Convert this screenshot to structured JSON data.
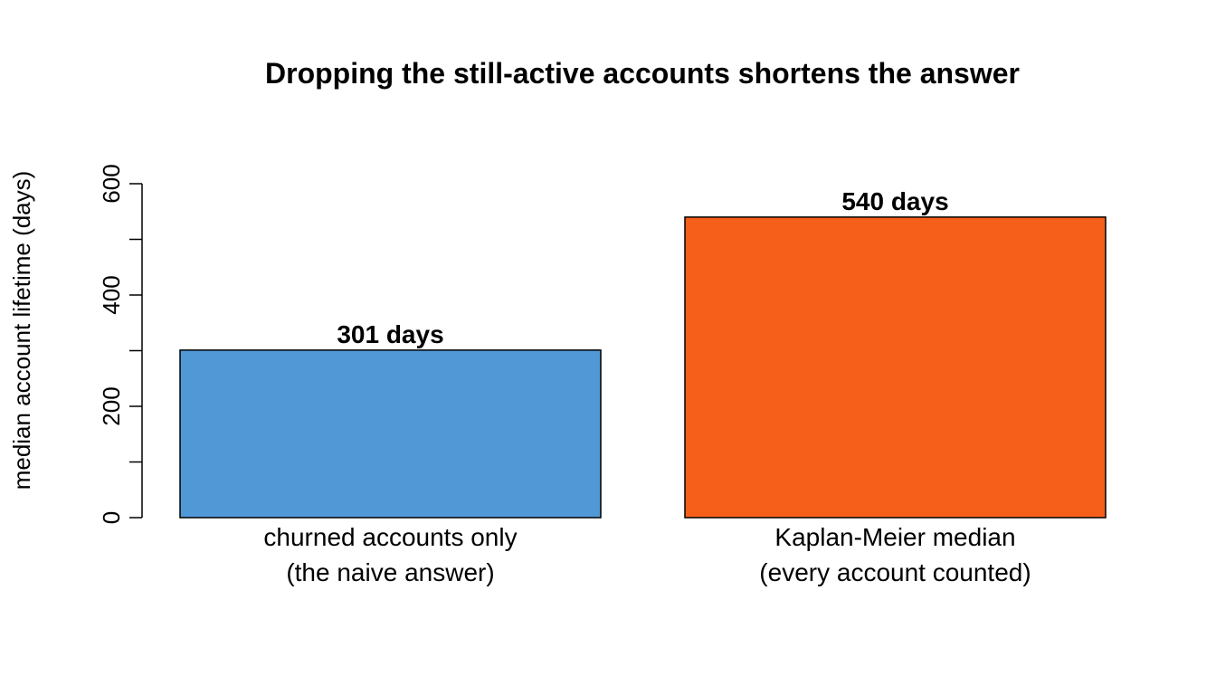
{
  "chart_data": {
    "type": "bar",
    "title": "Dropping the still-active accounts shortens the answer",
    "ylabel": "median account lifetime (days)",
    "xlabel": "",
    "ylim": [
      0,
      600
    ],
    "yticks": [
      0,
      100,
      200,
      300,
      400,
      500,
      600
    ],
    "ytick_labels": [
      "0",
      "",
      "200",
      "",
      "400",
      "",
      "600"
    ],
    "grid": false,
    "categories": [
      [
        "churned accounts only",
        "(the naive answer)"
      ],
      [
        "Kaplan-Meier median",
        "(every account counted)"
      ]
    ],
    "values": [
      301,
      540
    ],
    "data_labels": [
      "301 days",
      "540 days"
    ],
    "colors": [
      "#5098D6",
      "#F55F1A"
    ]
  }
}
